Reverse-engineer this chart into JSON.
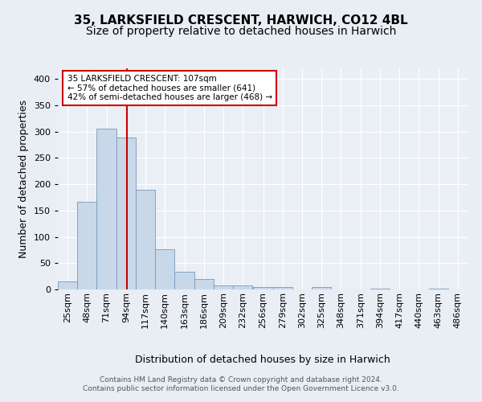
{
  "title": "35, LARKSFIELD CRESCENT, HARWICH, CO12 4BL",
  "subtitle": "Size of property relative to detached houses in Harwich",
  "xlabel": "Distribution of detached houses by size in Harwich",
  "ylabel": "Number of detached properties",
  "bin_labels": [
    "25sqm",
    "48sqm",
    "71sqm",
    "94sqm",
    "117sqm",
    "140sqm",
    "163sqm",
    "186sqm",
    "209sqm",
    "232sqm",
    "256sqm",
    "279sqm",
    "302sqm",
    "325sqm",
    "348sqm",
    "371sqm",
    "394sqm",
    "417sqm",
    "440sqm",
    "463sqm",
    "486sqm"
  ],
  "bin_edges": [
    25,
    48,
    71,
    94,
    117,
    140,
    163,
    186,
    209,
    232,
    256,
    279,
    302,
    325,
    348,
    371,
    394,
    417,
    440,
    463,
    486
  ],
  "bar_heights": [
    15,
    167,
    305,
    289,
    190,
    76,
    33,
    20,
    8,
    8,
    5,
    4,
    0,
    5,
    0,
    0,
    2,
    0,
    0,
    2
  ],
  "bar_color": "#c8d8e8",
  "bar_edge_color": "#7799bb",
  "property_size": 107,
  "vline_color": "#cc0000",
  "annotation_text": "35 LARKSFIELD CRESCENT: 107sqm\n← 57% of detached houses are smaller (641)\n42% of semi-detached houses are larger (468) →",
  "annotation_box_color": "#ffffff",
  "annotation_box_edge_color": "#cc0000",
  "ylim": [
    0,
    420
  ],
  "yticks": [
    0,
    50,
    100,
    150,
    200,
    250,
    300,
    350,
    400
  ],
  "background_color": "#e8eef4",
  "plot_background_color": "#eaeff5",
  "footer_text": "Contains HM Land Registry data © Crown copyright and database right 2024.\nContains public sector information licensed under the Open Government Licence v3.0.",
  "title_fontsize": 11,
  "subtitle_fontsize": 10,
  "xlabel_fontsize": 9,
  "ylabel_fontsize": 9,
  "tick_fontsize": 8,
  "footer_fontsize": 6.5
}
